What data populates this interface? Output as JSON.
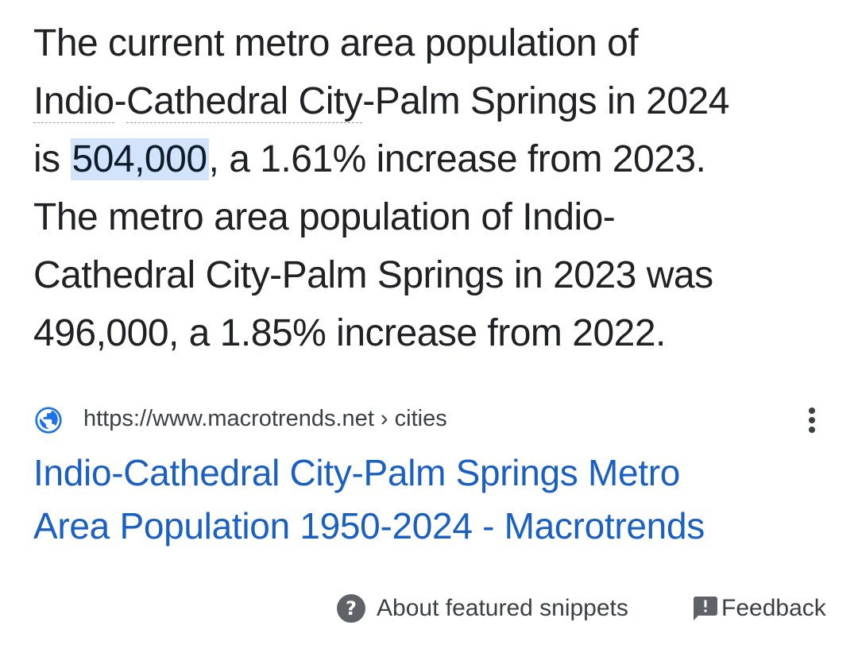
{
  "snippet": {
    "line1": "The current metro area population of",
    "line2_link_a": "Indio",
    "line2_sep": "-",
    "line2_link_b": "Cathedral City",
    "line2_rest": "-Palm Springs in 2024",
    "line3_pre": "is ",
    "highlight": "504,000",
    "line3_post": ", a 1.61% increase from 2023.",
    "line4": "The metro area population of Indio-",
    "line5": "Cathedral City-Palm Springs in 2023 was",
    "line6": "496,000, a 1.85% increase from 2022."
  },
  "source": {
    "icon": "globe-icon",
    "url": "https://www.macrotrends.net › cities",
    "menu_icon": "more-vert-icon"
  },
  "result": {
    "title_line1": "Indio-Cathedral City-Palm Springs Metro",
    "title_line2": "Area Population 1950-2024 - Macrotrends"
  },
  "footer": {
    "about_icon": "help-icon",
    "about_label": "About featured snippets",
    "feedback_icon": "feedback-icon",
    "feedback_label": "Feedback"
  },
  "colors": {
    "text": "#202124",
    "link": "#1a5fc4",
    "highlight": "#d2e3fc",
    "globe": "#1a73e8"
  }
}
